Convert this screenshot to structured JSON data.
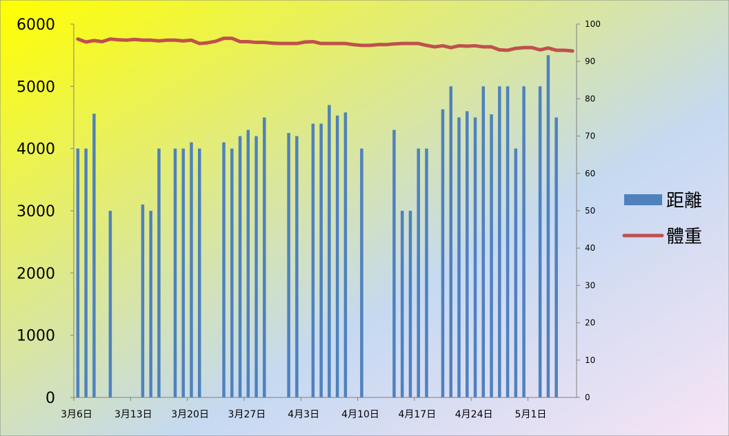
{
  "chart_data": {
    "type": "bar+line",
    "x_tick_labels": [
      "3月6日",
      "3月13日",
      "3月20日",
      "3月27日",
      "4月3日",
      "4月10日",
      "4月17日",
      "4月24日",
      "5月1日"
    ],
    "y_left_ticks": [
      "0",
      "1000",
      "2000",
      "3000",
      "4000",
      "5000",
      "6000"
    ],
    "y_right_ticks": [
      "0",
      "10",
      "20",
      "30",
      "40",
      "50",
      "60",
      "70",
      "80",
      "90",
      "100"
    ],
    "ylim_left": [
      0,
      6000
    ],
    "ylim_right": [
      0,
      100
    ],
    "x_day_range": [
      1,
      62
    ],
    "legend_position": "right",
    "colors": {
      "bar": "#4F81BD",
      "line": "#C0504D",
      "bg_left": "#FFFF00",
      "bg_right": "#C5D9F1",
      "bg_bottom_right": "#F7E4F5"
    },
    "series": [
      {
        "name": "距離",
        "type": "bar",
        "axis": "left",
        "values": [
          4000,
          4000,
          4560,
          null,
          3000,
          null,
          null,
          null,
          3100,
          3000,
          4000,
          null,
          4000,
          4000,
          4100,
          4000,
          null,
          null,
          4100,
          4000,
          4200,
          4300,
          4200,
          4500,
          null,
          null,
          4250,
          4200,
          null,
          4400,
          4400,
          4700,
          4530,
          4580,
          null,
          4000,
          null,
          null,
          null,
          4300,
          3000,
          3000,
          4000,
          4000,
          null,
          4630,
          5000,
          4500,
          4600,
          4500,
          5000,
          4550,
          5000,
          5000,
          4000,
          5000,
          null,
          5000,
          5500,
          4500,
          null,
          null
        ]
      },
      {
        "name": "體重",
        "type": "line",
        "axis": "right",
        "values": [
          96.0,
          95.2,
          95.6,
          95.3,
          96.0,
          95.8,
          95.7,
          95.9,
          95.7,
          95.7,
          95.5,
          95.7,
          95.7,
          95.5,
          95.7,
          94.8,
          95.0,
          95.4,
          96.2,
          96.2,
          95.3,
          95.3,
          95.1,
          95.1,
          94.9,
          94.8,
          94.8,
          94.8,
          95.2,
          95.3,
          94.8,
          94.8,
          94.8,
          94.8,
          94.5,
          94.3,
          94.3,
          94.5,
          94.5,
          94.7,
          94.8,
          94.8,
          94.8,
          94.3,
          93.9,
          94.2,
          93.7,
          94.2,
          94.1,
          94.2,
          93.9,
          93.9,
          93.1,
          93.0,
          93.5,
          93.7,
          93.7,
          93.1,
          93.6,
          93.0,
          93.0,
          92.8
        ]
      }
    ]
  }
}
